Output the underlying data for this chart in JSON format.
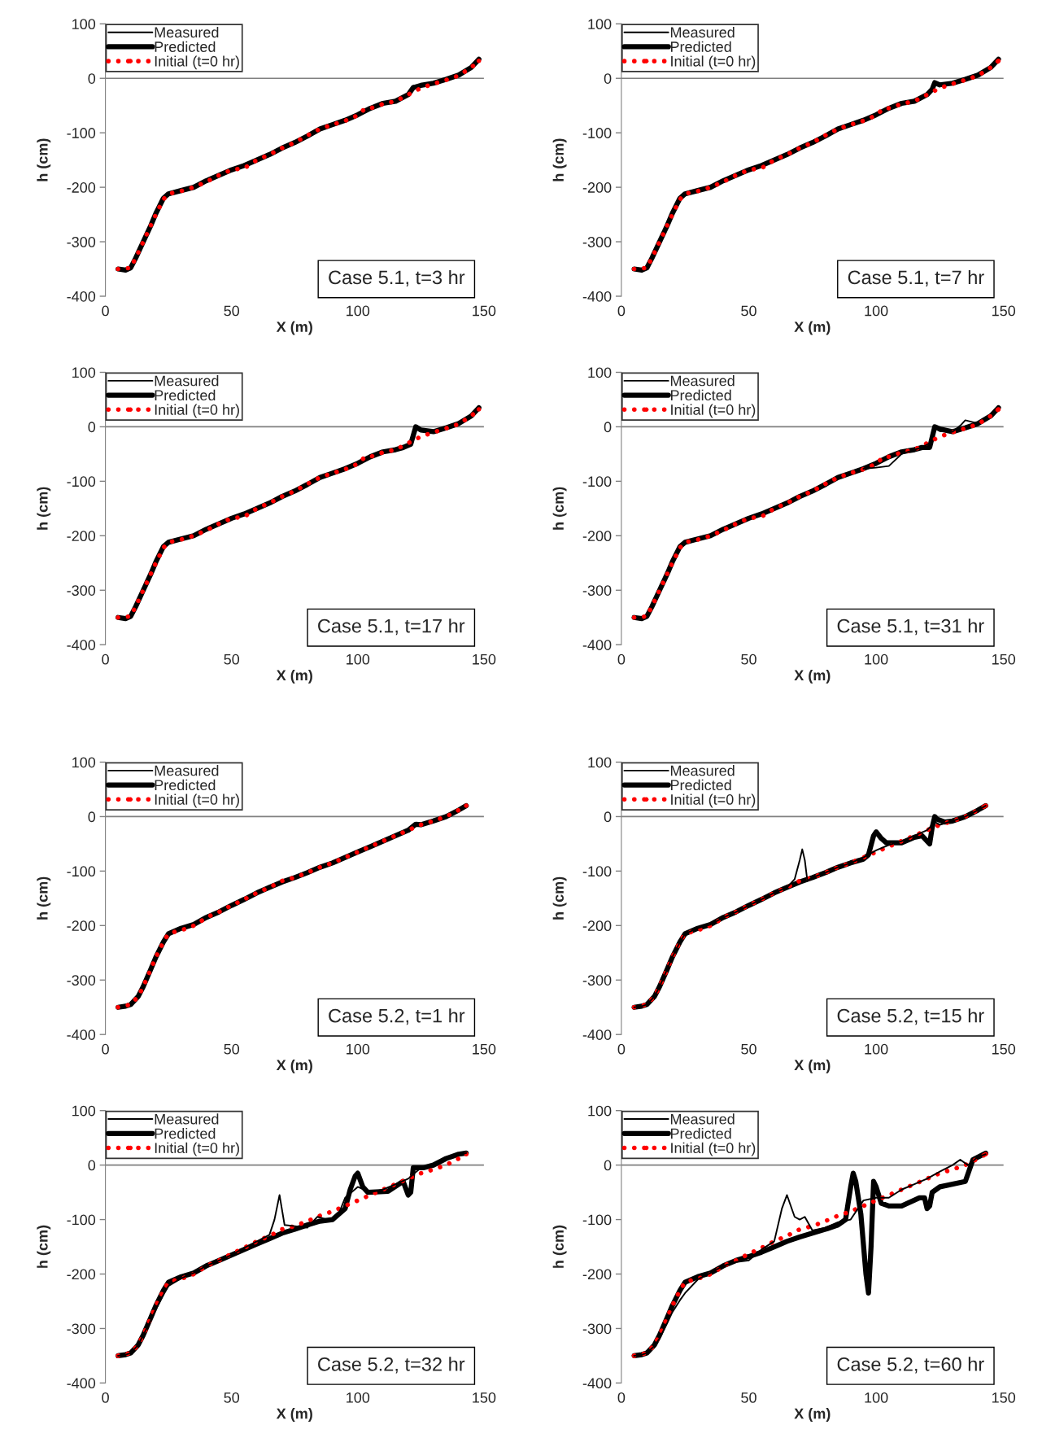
{
  "chart_data": [
    {
      "type": "line",
      "xlim": [
        0,
        150
      ],
      "ylim": [
        -400,
        100
      ],
      "xticks": [
        0,
        50,
        100,
        150
      ],
      "yticks": [
        -400,
        -300,
        -200,
        -100,
        0,
        100
      ],
      "xlabel": "X (m)",
      "ylabel": "h (cm)",
      "legend": "top left",
      "ref_lines": [
        {
          "axis": "y",
          "value": 0
        }
      ],
      "annotations": [
        "Case 5.1, t=3 hr"
      ],
      "series": [
        {
          "name": "Measured",
          "color": "#000000",
          "line_style": "solid"
        },
        {
          "name": "Predicted",
          "color": "#000000",
          "line_style": "solid",
          "x": [
            5,
            8,
            10,
            12,
            15,
            18,
            20,
            23,
            25,
            30,
            35,
            40,
            45,
            50,
            55,
            60,
            65,
            70,
            75,
            80,
            85,
            90,
            95,
            100,
            105,
            110,
            115,
            120,
            122,
            125,
            130,
            135,
            140,
            145,
            148
          ],
          "values": [
            -350,
            -352,
            -348,
            -330,
            -300,
            -270,
            -248,
            -220,
            -212,
            -206,
            -200,
            -188,
            -178,
            -168,
            -160,
            -150,
            -140,
            -128,
            -118,
            -106,
            -93,
            -85,
            -77,
            -67,
            -55,
            -46,
            -42,
            -30,
            -17,
            -13,
            -9,
            -2,
            6,
            20,
            35
          ]
        },
        {
          "name": "Initial (t=0 hr)",
          "color": "#ff0000",
          "line_style": "dotted",
          "x": [
            5,
            10,
            13,
            15,
            18,
            20,
            23,
            25,
            30,
            35,
            40,
            45,
            50,
            55,
            60,
            65,
            70,
            75,
            80,
            85,
            90,
            95,
            100,
            103,
            105,
            110,
            115,
            120,
            125,
            130,
            135,
            140,
            145,
            148
          ],
          "values": [
            -350,
            -348,
            -320,
            -300,
            -270,
            -250,
            -222,
            -212,
            -207,
            -200,
            -190,
            -178,
            -168,
            -165,
            -150,
            -140,
            -128,
            -118,
            -105,
            -93,
            -85,
            -78,
            -68,
            -55,
            -55,
            -47,
            -42,
            -30,
            -18,
            -10,
            -3,
            5,
            20,
            32
          ]
        }
      ]
    },
    {
      "type": "line",
      "xlim": [
        0,
        150
      ],
      "ylim": [
        -400,
        100
      ],
      "xticks": [
        0,
        50,
        100,
        150
      ],
      "yticks": [
        -400,
        -300,
        -200,
        -100,
        0,
        100
      ],
      "xlabel": "X (m)",
      "ylabel": "h (cm)",
      "legend": "top left",
      "ref_lines": [
        {
          "axis": "y",
          "value": 0
        }
      ],
      "annotations": [
        "Case 5.1, t=7 hr"
      ],
      "series": [
        {
          "name": "Measured",
          "color": "#000000",
          "line_style": "solid"
        },
        {
          "name": "Predicted",
          "color": "#000000",
          "line_style": "solid",
          "x": [
            5,
            8,
            10,
            12,
            15,
            18,
            20,
            23,
            25,
            30,
            35,
            40,
            45,
            50,
            55,
            60,
            65,
            70,
            75,
            80,
            85,
            90,
            95,
            100,
            105,
            110,
            115,
            120,
            122,
            123,
            125,
            130,
            135,
            140,
            145,
            148
          ],
          "values": [
            -350,
            -352,
            -348,
            -330,
            -300,
            -270,
            -248,
            -220,
            -212,
            -206,
            -200,
            -188,
            -178,
            -168,
            -160,
            -150,
            -140,
            -128,
            -118,
            -106,
            -93,
            -85,
            -77,
            -67,
            -55,
            -46,
            -42,
            -30,
            -20,
            -8,
            -12,
            -9,
            -2,
            6,
            20,
            35
          ]
        },
        {
          "name": "Initial (t=0 hr)",
          "color": "#ff0000",
          "line_style": "dotted",
          "x": [
            5,
            10,
            13,
            15,
            18,
            20,
            23,
            25,
            30,
            35,
            40,
            45,
            50,
            55,
            60,
            65,
            70,
            75,
            80,
            85,
            90,
            95,
            100,
            103,
            105,
            110,
            115,
            120,
            125,
            130,
            135,
            140,
            145,
            148
          ],
          "values": [
            -350,
            -348,
            -320,
            -300,
            -270,
            -250,
            -222,
            -212,
            -207,
            -200,
            -190,
            -178,
            -168,
            -165,
            -150,
            -140,
            -128,
            -118,
            -105,
            -93,
            -85,
            -78,
            -68,
            -55,
            -55,
            -47,
            -42,
            -30,
            -18,
            -10,
            -3,
            5,
            20,
            32
          ]
        }
      ]
    },
    {
      "type": "line",
      "xlim": [
        0,
        150
      ],
      "ylim": [
        -400,
        100
      ],
      "xticks": [
        0,
        50,
        100,
        150
      ],
      "yticks": [
        -400,
        -300,
        -200,
        -100,
        0,
        100
      ],
      "xlabel": "X (m)",
      "ylabel": "h (cm)",
      "legend": "top left",
      "ref_lines": [
        {
          "axis": "y",
          "value": 0
        }
      ],
      "annotations": [
        "Case 5.1, t=17 hr"
      ],
      "series": [
        {
          "name": "Measured",
          "color": "#000000",
          "line_style": "solid"
        },
        {
          "name": "Predicted",
          "color": "#000000",
          "line_style": "solid",
          "x": [
            5,
            8,
            10,
            12,
            15,
            18,
            20,
            23,
            25,
            30,
            35,
            40,
            45,
            50,
            55,
            60,
            65,
            70,
            75,
            80,
            85,
            90,
            95,
            100,
            105,
            110,
            115,
            118,
            121,
            123,
            125,
            130,
            135,
            140,
            145,
            148
          ],
          "values": [
            -350,
            -352,
            -348,
            -330,
            -300,
            -270,
            -248,
            -220,
            -212,
            -206,
            -200,
            -188,
            -178,
            -168,
            -160,
            -150,
            -140,
            -128,
            -118,
            -106,
            -93,
            -85,
            -77,
            -67,
            -55,
            -46,
            -42,
            -38,
            -32,
            0,
            -6,
            -9,
            -2,
            6,
            20,
            35
          ]
        },
        {
          "name": "Initial (t=0 hr)",
          "color": "#ff0000",
          "line_style": "dotted",
          "x": [
            5,
            10,
            13,
            15,
            18,
            20,
            23,
            25,
            30,
            35,
            40,
            45,
            50,
            55,
            60,
            65,
            70,
            75,
            80,
            85,
            90,
            95,
            100,
            103,
            105,
            110,
            115,
            120,
            125,
            130,
            135,
            140,
            145,
            148
          ],
          "values": [
            -350,
            -348,
            -320,
            -300,
            -270,
            -250,
            -222,
            -212,
            -207,
            -200,
            -190,
            -178,
            -168,
            -165,
            -150,
            -140,
            -128,
            -118,
            -105,
            -93,
            -85,
            -78,
            -68,
            -55,
            -55,
            -47,
            -42,
            -30,
            -18,
            -10,
            -3,
            5,
            20,
            32
          ]
        }
      ]
    },
    {
      "type": "line",
      "xlim": [
        0,
        150
      ],
      "ylim": [
        -400,
        100
      ],
      "xticks": [
        0,
        50,
        100,
        150
      ],
      "yticks": [
        -400,
        -300,
        -200,
        -100,
        0,
        100
      ],
      "xlabel": "X (m)",
      "ylabel": "h (cm)",
      "legend": "top left",
      "ref_lines": [
        {
          "axis": "y",
          "value": 0
        }
      ],
      "annotations": [
        "Case 5.1, t=31 hr"
      ],
      "series": [
        {
          "name": "Measured",
          "color": "#000000",
          "line_style": "solid",
          "x": [
            95,
            100,
            105,
            110,
            115,
            118,
            121,
            123,
            125,
            130,
            133,
            135,
            140
          ],
          "values": [
            -77,
            -75,
            -72,
            -50,
            -42,
            -38,
            -30,
            -2,
            -8,
            -9,
            2,
            12,
            6
          ]
        },
        {
          "name": "Predicted",
          "color": "#000000",
          "line_style": "solid",
          "x": [
            5,
            8,
            10,
            12,
            15,
            18,
            20,
            23,
            25,
            30,
            35,
            40,
            45,
            50,
            55,
            60,
            65,
            70,
            75,
            80,
            85,
            90,
            95,
            100,
            105,
            110,
            115,
            118,
            121,
            123,
            125,
            130,
            135,
            140,
            145,
            148
          ],
          "values": [
            -350,
            -352,
            -348,
            -330,
            -300,
            -270,
            -248,
            -220,
            -212,
            -206,
            -200,
            -188,
            -178,
            -168,
            -160,
            -150,
            -140,
            -128,
            -118,
            -106,
            -93,
            -85,
            -77,
            -67,
            -55,
            -46,
            -42,
            -38,
            -38,
            0,
            -4,
            -9,
            -2,
            6,
            20,
            35
          ]
        },
        {
          "name": "Initial (t=0 hr)",
          "color": "#ff0000",
          "line_style": "dotted",
          "x": [
            5,
            10,
            13,
            15,
            18,
            20,
            23,
            25,
            30,
            35,
            40,
            45,
            50,
            55,
            60,
            65,
            70,
            75,
            80,
            85,
            90,
            95,
            100,
            103,
            105,
            110,
            115,
            120,
            125,
            130,
            135,
            140,
            145,
            148
          ],
          "values": [
            -350,
            -348,
            -320,
            -300,
            -270,
            -250,
            -222,
            -212,
            -207,
            -200,
            -190,
            -178,
            -168,
            -165,
            -150,
            -140,
            -128,
            -118,
            -105,
            -93,
            -85,
            -78,
            -68,
            -55,
            -55,
            -47,
            -42,
            -30,
            -18,
            -10,
            -3,
            5,
            20,
            32
          ]
        }
      ]
    },
    {
      "type": "line",
      "xlim": [
        0,
        150
      ],
      "ylim": [
        -400,
        100
      ],
      "xticks": [
        0,
        50,
        100,
        150
      ],
      "yticks": [
        -400,
        -300,
        -200,
        -100,
        0,
        100
      ],
      "xlabel": "X (m)",
      "ylabel": "h (cm)",
      "legend": "top left",
      "ref_lines": [
        {
          "axis": "y",
          "value": 0
        }
      ],
      "annotations": [
        "Case 5.2, t=1 hr"
      ],
      "series": [
        {
          "name": "Measured",
          "color": "#000000",
          "line_style": "solid"
        },
        {
          "name": "Predicted",
          "color": "#000000",
          "line_style": "solid",
          "x": [
            5,
            8,
            10,
            13,
            15,
            18,
            20,
            23,
            25,
            30,
            35,
            40,
            45,
            50,
            55,
            60,
            65,
            70,
            75,
            80,
            85,
            90,
            95,
            100,
            105,
            110,
            115,
            120,
            123,
            125,
            130,
            135,
            140,
            143
          ],
          "values": [
            -350,
            -348,
            -345,
            -330,
            -312,
            -280,
            -258,
            -230,
            -215,
            -205,
            -198,
            -185,
            -175,
            -163,
            -152,
            -140,
            -130,
            -120,
            -112,
            -103,
            -93,
            -85,
            -75,
            -65,
            -55,
            -45,
            -35,
            -25,
            -14,
            -15,
            -8,
            0,
            12,
            20
          ]
        },
        {
          "name": "Initial (t=0 hr)",
          "color": "#ff0000",
          "line_style": "dotted",
          "x": [
            5,
            10,
            13,
            15,
            18,
            20,
            23,
            25,
            30,
            33,
            37,
            40,
            45,
            50,
            55,
            60,
            65,
            70,
            75,
            80,
            85,
            90,
            95,
            100,
            105,
            110,
            115,
            120,
            125,
            130,
            135,
            140,
            143
          ],
          "values": [
            -350,
            -345,
            -330,
            -312,
            -280,
            -258,
            -230,
            -215,
            -208,
            -205,
            -195,
            -185,
            -175,
            -163,
            -152,
            -140,
            -130,
            -118,
            -112,
            -103,
            -93,
            -85,
            -75,
            -65,
            -55,
            -45,
            -35,
            -25,
            -15,
            -8,
            0,
            12,
            20
          ]
        }
      ]
    },
    {
      "type": "line",
      "xlim": [
        0,
        150
      ],
      "ylim": [
        -400,
        100
      ],
      "xticks": [
        0,
        50,
        100,
        150
      ],
      "yticks": [
        -400,
        -300,
        -200,
        -100,
        0,
        100
      ],
      "xlabel": "X (m)",
      "ylabel": "h (cm)",
      "legend": "top left",
      "ref_lines": [
        {
          "axis": "y",
          "value": 0
        }
      ],
      "annotations": [
        "Case 5.2, t=15 hr"
      ],
      "series": [
        {
          "name": "Measured",
          "color": "#000000",
          "line_style": "solid",
          "x": [
            5,
            8,
            10,
            13,
            15,
            18,
            20,
            23,
            25,
            30,
            35,
            40,
            45,
            50,
            55,
            60,
            65,
            68,
            70,
            71,
            72,
            73,
            75,
            80,
            85,
            90,
            95,
            100,
            105,
            110,
            115,
            120,
            123,
            125,
            130,
            135,
            140,
            143
          ],
          "values": [
            -350,
            -348,
            -345,
            -330,
            -312,
            -280,
            -258,
            -230,
            -215,
            -205,
            -198,
            -185,
            -175,
            -163,
            -152,
            -140,
            -130,
            -115,
            -80,
            -60,
            -80,
            -118,
            -112,
            -103,
            -93,
            -85,
            -75,
            -62,
            -52,
            -45,
            -35,
            -25,
            -10,
            -15,
            -8,
            0,
            12,
            20
          ]
        },
        {
          "name": "Predicted",
          "color": "#000000",
          "line_style": "solid",
          "x": [
            5,
            8,
            10,
            13,
            15,
            18,
            20,
            23,
            25,
            30,
            35,
            40,
            45,
            50,
            55,
            60,
            65,
            70,
            75,
            80,
            85,
            90,
            95,
            97,
            99,
            100,
            102,
            104,
            110,
            115,
            118,
            120,
            121,
            122,
            123,
            124,
            127,
            130,
            135,
            140,
            143
          ],
          "values": [
            -350,
            -348,
            -345,
            -330,
            -312,
            -280,
            -258,
            -230,
            -215,
            -205,
            -198,
            -185,
            -175,
            -163,
            -152,
            -140,
            -130,
            -120,
            -112,
            -103,
            -93,
            -85,
            -78,
            -70,
            -35,
            -28,
            -40,
            -48,
            -48,
            -38,
            -35,
            -45,
            -50,
            -20,
            0,
            -5,
            -10,
            -8,
            0,
            12,
            20
          ]
        },
        {
          "name": "Initial (t=0 hr)",
          "color": "#ff0000",
          "line_style": "dotted",
          "x": [
            5,
            10,
            13,
            15,
            18,
            20,
            23,
            25,
            30,
            33,
            37,
            40,
            45,
            50,
            55,
            60,
            65,
            70,
            75,
            80,
            85,
            90,
            95,
            100,
            105,
            110,
            115,
            120,
            125,
            130,
            135,
            140,
            143
          ],
          "values": [
            -350,
            -345,
            -330,
            -312,
            -280,
            -258,
            -230,
            -215,
            -208,
            -205,
            -195,
            -185,
            -175,
            -163,
            -152,
            -140,
            -130,
            -118,
            -112,
            -103,
            -93,
            -85,
            -75,
            -65,
            -55,
            -45,
            -35,
            -25,
            -15,
            -8,
            0,
            12,
            20
          ]
        }
      ]
    },
    {
      "type": "line",
      "xlim": [
        0,
        150
      ],
      "ylim": [
        -400,
        100
      ],
      "xticks": [
        0,
        50,
        100,
        150
      ],
      "yticks": [
        -400,
        -300,
        -200,
        -100,
        0,
        100
      ],
      "xlabel": "X (m)",
      "ylabel": "h (cm)",
      "legend": "top left",
      "ref_lines": [
        {
          "axis": "y",
          "value": 0
        }
      ],
      "annotations": [
        "Case 5.2, t=32 hr"
      ],
      "series": [
        {
          "name": "Measured",
          "color": "#000000",
          "line_style": "solid",
          "x": [
            5,
            8,
            10,
            13,
            15,
            18,
            20,
            23,
            25,
            30,
            35,
            40,
            45,
            50,
            55,
            60,
            65,
            67,
            69,
            71,
            75,
            80,
            84,
            88,
            92,
            95,
            100,
            105,
            110,
            115,
            120,
            125,
            130,
            135,
            140,
            143
          ],
          "values": [
            -350,
            -348,
            -345,
            -330,
            -312,
            -285,
            -265,
            -238,
            -222,
            -208,
            -198,
            -185,
            -175,
            -165,
            -152,
            -140,
            -128,
            -100,
            -55,
            -110,
            -112,
            -115,
            -95,
            -100,
            -95,
            -60,
            -40,
            -50,
            -45,
            -35,
            -25,
            -5,
            0,
            15,
            18,
            22
          ]
        },
        {
          "name": "Predicted",
          "color": "#000000",
          "line_style": "solid",
          "x": [
            5,
            8,
            10,
            13,
            15,
            18,
            20,
            23,
            25,
            30,
            35,
            40,
            45,
            50,
            55,
            60,
            65,
            70,
            75,
            80,
            85,
            90,
            95,
            97,
            99,
            100,
            102,
            104,
            112,
            118,
            120,
            121,
            122,
            126,
            130,
            135,
            140,
            143
          ],
          "values": [
            -350,
            -348,
            -345,
            -330,
            -312,
            -280,
            -258,
            -230,
            -215,
            -205,
            -198,
            -185,
            -175,
            -165,
            -155,
            -145,
            -135,
            -125,
            -118,
            -110,
            -103,
            -100,
            -80,
            -45,
            -20,
            -15,
            -40,
            -50,
            -48,
            -30,
            -55,
            -50,
            -5,
            -5,
            0,
            12,
            20,
            22
          ]
        },
        {
          "name": "Initial (t=0 hr)",
          "color": "#ff0000",
          "line_style": "dotted",
          "x": [
            5,
            10,
            13,
            15,
            18,
            20,
            23,
            25,
            30,
            33,
            37,
            40,
            45,
            50,
            55,
            60,
            65,
            70,
            75,
            80,
            85,
            90,
            95,
            100,
            105,
            110,
            115,
            120,
            125,
            130,
            135,
            140,
            143
          ],
          "values": [
            -350,
            -345,
            -330,
            -312,
            -280,
            -258,
            -230,
            -215,
            -208,
            -205,
            -195,
            -185,
            -175,
            -163,
            -152,
            -140,
            -130,
            -118,
            -112,
            -103,
            -93,
            -85,
            -75,
            -65,
            -55,
            -45,
            -35,
            -25,
            -15,
            -8,
            0,
            12,
            20
          ]
        }
      ]
    },
    {
      "type": "line",
      "xlim": [
        0,
        150
      ],
      "ylim": [
        -400,
        100
      ],
      "xticks": [
        0,
        50,
        100,
        150
      ],
      "yticks": [
        -400,
        -300,
        -200,
        -100,
        0,
        100
      ],
      "xlabel": "X (m)",
      "ylabel": "h (cm)",
      "legend": "top left",
      "ref_lines": [
        {
          "axis": "y",
          "value": 0
        }
      ],
      "annotations": [
        "Case 5.2, t=60 hr"
      ],
      "series": [
        {
          "name": "Measured",
          "color": "#000000",
          "line_style": "solid",
          "x": [
            5,
            8,
            10,
            13,
            15,
            18,
            20,
            23,
            25,
            30,
            35,
            40,
            45,
            50,
            55,
            60,
            63,
            65,
            68,
            70,
            72,
            75,
            80,
            85,
            90,
            95,
            100,
            105,
            110,
            115,
            120,
            125,
            130,
            133,
            136,
            140,
            143
          ],
          "values": [
            -350,
            -348,
            -345,
            -332,
            -318,
            -290,
            -270,
            -248,
            -235,
            -210,
            -198,
            -185,
            -178,
            -175,
            -155,
            -140,
            -80,
            -55,
            -95,
            -100,
            -95,
            -120,
            -115,
            -105,
            -100,
            -65,
            -60,
            -60,
            -45,
            -35,
            -25,
            -12,
            0,
            10,
            0,
            15,
            20
          ]
        },
        {
          "name": "Predicted",
          "color": "#000000",
          "line_style": "solid",
          "x": [
            5,
            8,
            10,
            13,
            15,
            18,
            20,
            23,
            25,
            30,
            35,
            40,
            45,
            50,
            55,
            60,
            65,
            70,
            75,
            80,
            85,
            88,
            90,
            91,
            92,
            94,
            96,
            97,
            98,
            99,
            100,
            102,
            105,
            110,
            117,
            119,
            120,
            121,
            122,
            125,
            135,
            138,
            143
          ],
          "values": [
            -350,
            -348,
            -345,
            -330,
            -312,
            -280,
            -258,
            -230,
            -215,
            -205,
            -198,
            -185,
            -175,
            -168,
            -160,
            -150,
            -140,
            -132,
            -125,
            -118,
            -110,
            -100,
            -40,
            -15,
            -30,
            -90,
            -200,
            -235,
            -150,
            -30,
            -40,
            -70,
            -75,
            -75,
            -60,
            -60,
            -80,
            -75,
            -50,
            -40,
            -30,
            10,
            22
          ]
        },
        {
          "name": "Initial (t=0 hr)",
          "color": "#ff0000",
          "line_style": "dotted",
          "x": [
            5,
            10,
            13,
            15,
            18,
            20,
            23,
            25,
            30,
            33,
            37,
            40,
            45,
            50,
            55,
            60,
            65,
            70,
            75,
            80,
            85,
            90,
            95,
            100,
            105,
            110,
            115,
            120,
            125,
            130,
            135,
            140,
            143
          ],
          "values": [
            -350,
            -345,
            -330,
            -312,
            -280,
            -258,
            -230,
            -215,
            -208,
            -205,
            -195,
            -185,
            -175,
            -163,
            -152,
            -140,
            -130,
            -118,
            -112,
            -103,
            -93,
            -85,
            -75,
            -65,
            -55,
            -45,
            -35,
            -25,
            -15,
            -8,
            0,
            12,
            20
          ]
        }
      ]
    }
  ]
}
